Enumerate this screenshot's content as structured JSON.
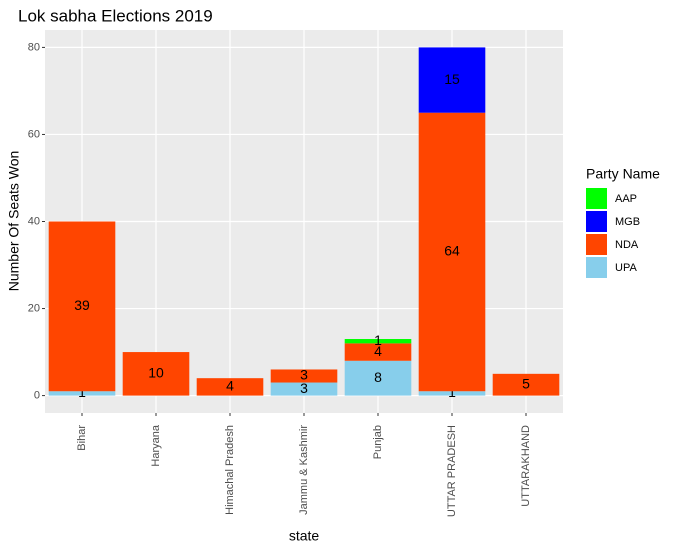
{
  "chart_data": {
    "type": "stacked_bar",
    "title": "Lok sabha Elections 2019",
    "x_label": "state",
    "y_label": "Number Of Seats Won",
    "legend_title": "Party Name",
    "categories": [
      "Bihar",
      "Haryana",
      "Himachal Pradesh",
      "Jammu & Kashmir",
      "Punjab",
      "UTTAR PRADESH",
      "UTTARAKHAND"
    ],
    "series": [
      {
        "name": "AAP",
        "color": "#00ff00",
        "values": [
          null,
          null,
          null,
          null,
          1,
          null,
          null
        ]
      },
      {
        "name": "MGB",
        "color": "#0000ff",
        "values": [
          null,
          null,
          null,
          null,
          null,
          15,
          null
        ]
      },
      {
        "name": "NDA",
        "color": "#ff4500",
        "values": [
          39,
          10,
          4,
          3,
          4,
          64,
          5
        ]
      },
      {
        "name": "UPA",
        "color": "#87ceeb",
        "values": [
          1,
          null,
          null,
          3,
          8,
          1,
          null
        ]
      }
    ],
    "ylim": [
      -4,
      84
    ],
    "yticks": [
      0,
      20,
      40,
      60,
      80
    ],
    "grid": true,
    "legend": "right"
  }
}
